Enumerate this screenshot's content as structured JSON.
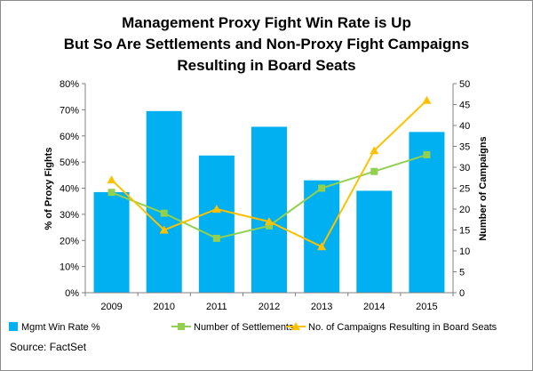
{
  "chart_data": {
    "type": "bar",
    "title_lines": [
      "Management Proxy Fight Win Rate is Up",
      "But So Are Settlements and Non-Proxy Fight Campaigns",
      "Resulting in Board Seats"
    ],
    "categories": [
      "2009",
      "2010",
      "2011",
      "2012",
      "2013",
      "2014",
      "2015"
    ],
    "left_axis": {
      "label": "% of Proxy Fights",
      "ylim": [
        0,
        80
      ],
      "ticks": [
        "0%",
        "10%",
        "20%",
        "30%",
        "40%",
        "50%",
        "60%",
        "70%",
        "80%"
      ]
    },
    "right_axis": {
      "label": "Number of Campaigns",
      "ylim": [
        0,
        50
      ],
      "ticks": [
        "0",
        "5",
        "10",
        "15",
        "20",
        "25",
        "30",
        "35",
        "40",
        "45",
        "50"
      ]
    },
    "series": [
      {
        "name": "Mgmt Win Rate %",
        "type": "bar",
        "axis": "left",
        "color": "#00b0f0",
        "values": [
          38.5,
          69.5,
          52.5,
          63.5,
          43,
          39,
          61.5
        ]
      },
      {
        "name": "Number of Settlements",
        "type": "line",
        "axis": "right",
        "color": "#92d050",
        "values": [
          24,
          19,
          13,
          16,
          25,
          29,
          33
        ]
      },
      {
        "name": "No. of Campaigns Resulting in Board Seats",
        "type": "line",
        "axis": "right",
        "color": "#ffc000",
        "values": [
          27,
          15,
          20,
          17,
          11,
          34,
          46
        ]
      }
    ],
    "legend_position": "bottom",
    "grid": false
  },
  "source": "Source: FactSet"
}
